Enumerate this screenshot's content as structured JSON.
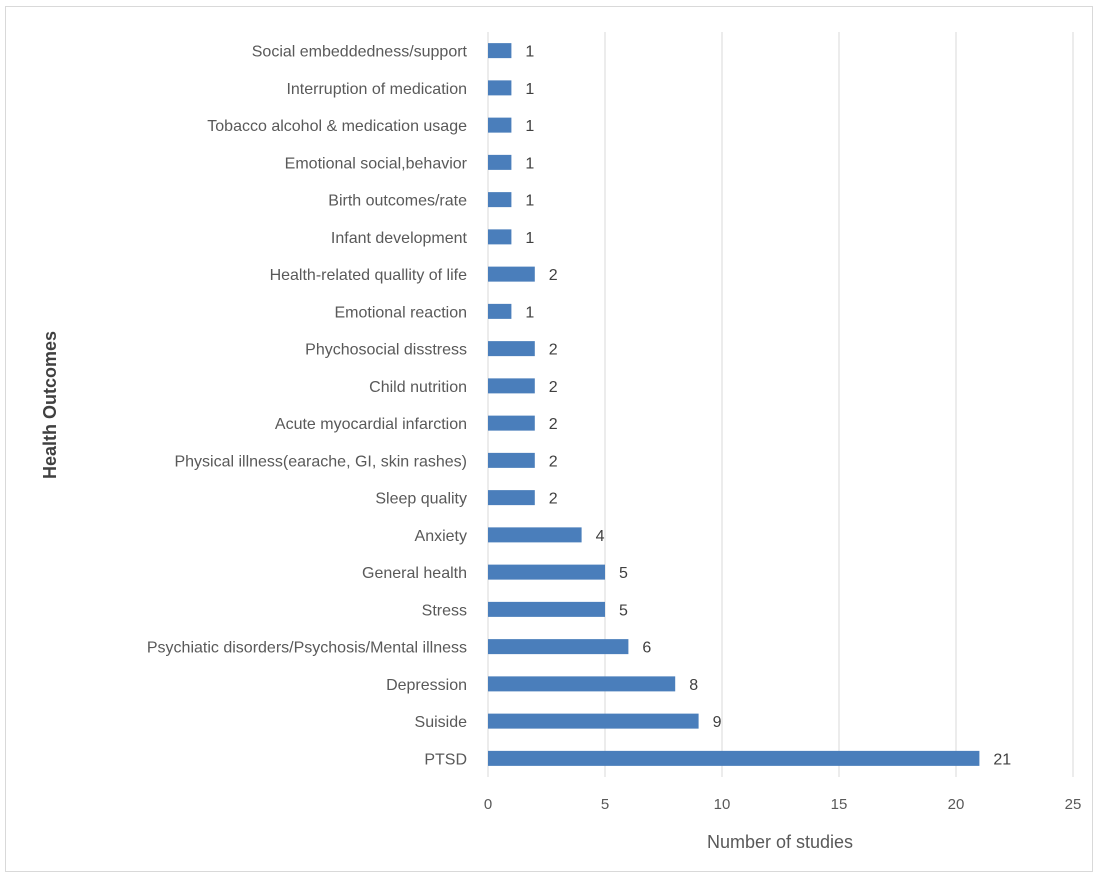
{
  "chart_data": {
    "type": "bar",
    "orientation": "horizontal",
    "categories": [
      "Social embeddedness/support",
      "Interruption of medication",
      "Tobacco alcohol & medication usage",
      "Emotional social,behavior",
      "Birth outcomes/rate",
      "Infant development",
      "Health-related quallity of life",
      "Emotional reaction",
      "Phychosocial disstress",
      "Child nutrition",
      "Acute myocardial infarction",
      "Physical illness(earache, GI, skin rashes)",
      "Sleep quality",
      "Anxiety",
      "General health",
      "Stress",
      "Psychiatic disorders/Psychosis/Mental illness",
      "Depression",
      "Suiside",
      "PTSD"
    ],
    "values": [
      1,
      1,
      1,
      1,
      1,
      1,
      2,
      1,
      2,
      2,
      2,
      2,
      2,
      4,
      5,
      5,
      6,
      8,
      9,
      21
    ],
    "data_labels": [
      "1",
      "1",
      "1",
      "1",
      "1",
      "1",
      "2",
      "1",
      "2",
      "2",
      "2",
      "2",
      "2",
      "4",
      "5",
      "5",
      "6",
      "8",
      "9",
      "21"
    ],
    "xticks": [
      "0",
      "5",
      "10",
      "15",
      "20",
      "25"
    ],
    "xlim": [
      0,
      25
    ],
    "xlabel": "Number of studies",
    "ylabel": "Health Outcomes",
    "grid": "vertical",
    "legend": "none",
    "bar_color": "#4a7ebb"
  }
}
